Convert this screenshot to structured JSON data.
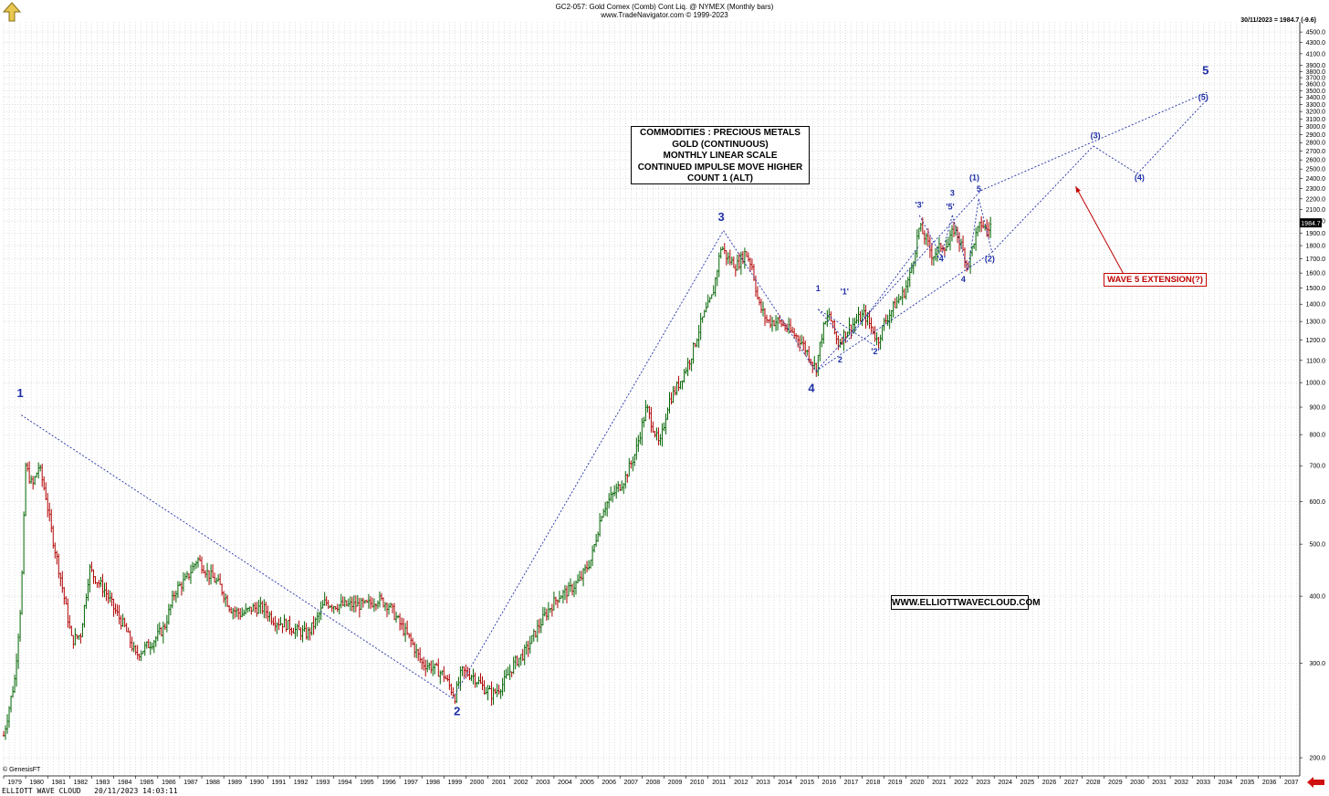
{
  "header": {
    "title": "GC2-057:  Gold Comex (Comb) Cont Liq. @ NYMEX  (Monthly bars)",
    "copyright": "www.TradeNavigator.com © 1999-2023"
  },
  "last_readout": "30/11/2023 = 1984.7 (-9.6)",
  "price_tag": "1984.7",
  "info_box": {
    "lines": [
      "COMMODITIES : PRECIOUS METALS",
      "GOLD (CONTINUOUS)",
      "MONTHLY LINEAR SCALE",
      "CONTINUED IMPULSE MOVE HIGHER",
      "COUNT 1 (ALT)"
    ]
  },
  "url_box": "WWW.ELLIOTTWAVECLOUD.COM",
  "extension_label": "WAVE 5 EXTENSION(?)",
  "footer": {
    "left": "ELLIOTT WAVE CLOUD   20/11/2023 14:03:11",
    "genesis": "© GenesisFT"
  },
  "colors": {
    "wave_blue": "#1f2fa6",
    "annotation_red": "#c00000",
    "up_bar": "#006400",
    "down_bar": "#b00000",
    "grid": "#c8c8c8"
  },
  "chart_data": {
    "type": "ohlc-monthly",
    "y_scale": "log",
    "ylim": [
      185,
      4700
    ],
    "xlim": [
      1979.0,
      2037.8
    ],
    "y_ticks": [
      200,
      300,
      400,
      500,
      600,
      700,
      800,
      900,
      1000,
      1100,
      1200,
      1300,
      1400,
      1500,
      1600,
      1700,
      1800,
      1900,
      2000,
      2100,
      2200,
      2300,
      2400,
      2500,
      2600,
      2700,
      2800,
      2900,
      3000,
      3100,
      3200,
      3300,
      3400,
      3500,
      3600,
      3700,
      3800,
      3900,
      4100,
      4300,
      4500
    ],
    "x_ticks": [
      1979,
      1980,
      1981,
      1982,
      1983,
      1984,
      1985,
      1986,
      1987,
      1988,
      1989,
      1990,
      1991,
      1992,
      1993,
      1994,
      1995,
      1996,
      1997,
      1998,
      1999,
      2000,
      2001,
      2002,
      2003,
      2004,
      2005,
      2006,
      2007,
      2008,
      2009,
      2010,
      2011,
      2012,
      2013,
      2014,
      2015,
      2016,
      2017,
      2018,
      2019,
      2020,
      2021,
      2022,
      2023,
      2024,
      2025,
      2026,
      2027,
      2028,
      2029,
      2030,
      2031,
      2032,
      2033,
      2034,
      2035,
      2036,
      2037
    ],
    "price_anchors": [
      [
        1979.0,
        220
      ],
      [
        1979.5,
        280
      ],
      [
        1979.8,
        400
      ],
      [
        1980.0,
        700
      ],
      [
        1980.3,
        640
      ],
      [
        1980.6,
        700
      ],
      [
        1980.9,
        620
      ],
      [
        1981.2,
        520
      ],
      [
        1981.6,
        430
      ],
      [
        1982.1,
        330
      ],
      [
        1982.5,
        340
      ],
      [
        1982.9,
        450
      ],
      [
        1983.2,
        430
      ],
      [
        1983.6,
        410
      ],
      [
        1984.0,
        380
      ],
      [
        1984.5,
        350
      ],
      [
        1985.0,
        310
      ],
      [
        1985.4,
        320
      ],
      [
        1985.8,
        330
      ],
      [
        1986.3,
        350
      ],
      [
        1986.8,
        410
      ],
      [
        1987.3,
        430
      ],
      [
        1987.8,
        470
      ],
      [
        1988.3,
        440
      ],
      [
        1988.8,
        420
      ],
      [
        1989.3,
        380
      ],
      [
        1989.8,
        370
      ],
      [
        1990.3,
        380
      ],
      [
        1990.8,
        380
      ],
      [
        1991.3,
        360
      ],
      [
        1991.8,
        355
      ],
      [
        1992.3,
        345
      ],
      [
        1992.8,
        340
      ],
      [
        1993.2,
        360
      ],
      [
        1993.6,
        390
      ],
      [
        1994.0,
        385
      ],
      [
        1994.5,
        385
      ],
      [
        1995.0,
        385
      ],
      [
        1995.5,
        385
      ],
      [
        1996.0,
        395
      ],
      [
        1996.5,
        385
      ],
      [
        1997.0,
        355
      ],
      [
        1997.5,
        330
      ],
      [
        1998.0,
        300
      ],
      [
        1998.5,
        295
      ],
      [
        1999.0,
        285
      ],
      [
        1999.5,
        260
      ],
      [
        1999.8,
        290
      ],
      [
        2000.3,
        285
      ],
      [
        2000.8,
        270
      ],
      [
        2001.2,
        262
      ],
      [
        2001.7,
        275
      ],
      [
        2002.2,
        300
      ],
      [
        2002.7,
        315
      ],
      [
        2003.2,
        345
      ],
      [
        2003.7,
        375
      ],
      [
        2004.2,
        400
      ],
      [
        2004.7,
        410
      ],
      [
        2005.2,
        430
      ],
      [
        2005.7,
        470
      ],
      [
        2006.2,
        580
      ],
      [
        2006.7,
        620
      ],
      [
        2007.2,
        660
      ],
      [
        2007.7,
        740
      ],
      [
        2008.2,
        900
      ],
      [
        2008.8,
        760
      ],
      [
        2009.2,
        920
      ],
      [
        2009.7,
        1000
      ],
      [
        2010.2,
        1110
      ],
      [
        2010.7,
        1300
      ],
      [
        2011.2,
        1450
      ],
      [
        2011.6,
        1800
      ],
      [
        2011.9,
        1700
      ],
      [
        2012.3,
        1650
      ],
      [
        2012.7,
        1750
      ],
      [
        2013.0,
        1650
      ],
      [
        2013.3,
        1400
      ],
      [
        2013.7,
        1300
      ],
      [
        2014.2,
        1300
      ],
      [
        2014.7,
        1250
      ],
      [
        2015.2,
        1200
      ],
      [
        2015.6,
        1120
      ],
      [
        2015.9,
        1060
      ],
      [
        2016.2,
        1250
      ],
      [
        2016.5,
        1340
      ],
      [
        2016.9,
        1180
      ],
      [
        2017.3,
        1250
      ],
      [
        2017.7,
        1300
      ],
      [
        2018.1,
        1340
      ],
      [
        2018.5,
        1250
      ],
      [
        2018.7,
        1190
      ],
      [
        2019.0,
        1290
      ],
      [
        2019.5,
        1400
      ],
      [
        2019.9,
        1470
      ],
      [
        2020.2,
        1600
      ],
      [
        2020.6,
        1950
      ],
      [
        2020.9,
        1850
      ],
      [
        2021.2,
        1720
      ],
      [
        2021.6,
        1800
      ],
      [
        2021.9,
        1800
      ],
      [
        2022.2,
        1950
      ],
      [
        2022.5,
        1800
      ],
      [
        2022.8,
        1650
      ],
      [
        2023.1,
        1850
      ],
      [
        2023.4,
        1980
      ],
      [
        2023.7,
        1920
      ],
      [
        2023.9,
        1985
      ]
    ],
    "wave_labels": [
      {
        "text": "1",
        "x": 1979.75,
        "price": 940,
        "size": "large"
      },
      {
        "text": "2",
        "x": 1999.6,
        "price": 240,
        "size": "large"
      },
      {
        "text": "3",
        "x": 2011.6,
        "price": 2000,
        "size": "large"
      },
      {
        "text": "4",
        "x": 2015.7,
        "price": 960,
        "size": "large"
      },
      {
        "text": "5",
        "x": 2033.6,
        "price": 3750,
        "size": "large"
      },
      {
        "text": "1",
        "x": 2016.0,
        "price": 1480,
        "size": "small"
      },
      {
        "text": "2",
        "x": 2017.0,
        "price": 1090,
        "size": "small"
      },
      {
        "text": "'1'",
        "x": 2017.2,
        "price": 1460,
        "size": "small"
      },
      {
        "text": "'2'",
        "x": 2018.6,
        "price": 1130,
        "size": "small"
      },
      {
        "text": "'3'",
        "x": 2020.6,
        "price": 2120,
        "size": "small"
      },
      {
        "text": "'4'",
        "x": 2021.6,
        "price": 1680,
        "size": "small"
      },
      {
        "text": "'5'",
        "x": 2022.0,
        "price": 2100,
        "size": "small"
      },
      {
        "text": "3",
        "x": 2022.1,
        "price": 2230,
        "size": "small"
      },
      {
        "text": "4",
        "x": 2022.6,
        "price": 1540,
        "size": "small"
      },
      {
        "text": "5",
        "x": 2023.3,
        "price": 2270,
        "size": "small"
      },
      {
        "text": "(1)",
        "x": 2023.1,
        "price": 2380,
        "size": "small"
      },
      {
        "text": "(2)",
        "x": 2023.8,
        "price": 1680,
        "size": "small"
      },
      {
        "text": "(3)",
        "x": 2028.6,
        "price": 2850,
        "size": "small"
      },
      {
        "text": "(4)",
        "x": 2030.6,
        "price": 2380,
        "size": "small"
      },
      {
        "text": "(5)",
        "x": 2033.5,
        "price": 3360,
        "size": "small"
      }
    ],
    "wave_lines": [
      [
        [
          1979.8,
          870
        ],
        [
          1999.4,
          258
        ]
      ],
      [
        [
          1999.4,
          258
        ],
        [
          2011.7,
          1920
        ]
      ],
      [
        [
          2011.7,
          1920
        ],
        [
          2015.9,
          1050
        ]
      ],
      [
        [
          2015.9,
          1050
        ],
        [
          2023.9,
          1750
        ]
      ],
      [
        [
          2023.9,
          1750
        ],
        [
          2028.5,
          2760
        ]
      ],
      [
        [
          2028.5,
          2760
        ],
        [
          2030.5,
          2450
        ]
      ],
      [
        [
          2030.5,
          2450
        ],
        [
          2033.7,
          3380
        ]
      ],
      [
        [
          2015.9,
          1050
        ],
        [
          2023.4,
          2280
        ]
      ],
      [
        [
          2023.4,
          2280
        ],
        [
          2033.7,
          3480
        ]
      ],
      [
        [
          2016.0,
          1370
        ],
        [
          2018.6,
          1170
        ]
      ],
      [
        [
          2016.0,
          1370
        ],
        [
          2017.3,
          1190
        ]
      ],
      [
        [
          2017.3,
          1190
        ],
        [
          2020.6,
          1800
        ]
      ],
      [
        [
          2020.6,
          2050
        ],
        [
          2021.6,
          1720
        ]
      ],
      [
        [
          2021.6,
          1720
        ],
        [
          2022.1,
          2050
        ]
      ],
      [
        [
          2022.1,
          2050
        ],
        [
          2022.8,
          1620
        ]
      ],
      [
        [
          2022.8,
          1620
        ],
        [
          2023.3,
          2200
        ]
      ],
      [
        [
          2023.3,
          2200
        ],
        [
          2023.9,
          1750
        ]
      ]
    ],
    "extension_arrow": {
      "from": [
        2030.0,
        1560
      ],
      "to": [
        2027.7,
        2320
      ]
    }
  }
}
